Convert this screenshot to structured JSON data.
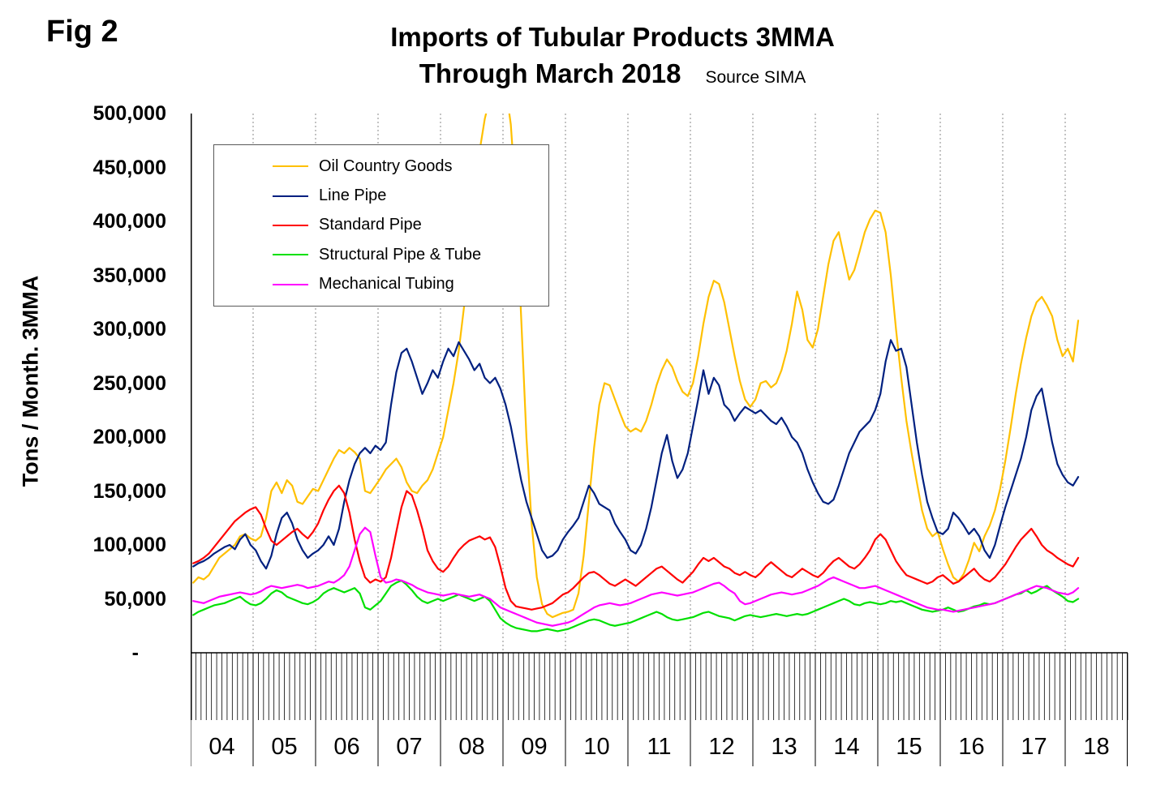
{
  "fig_label": "Fig 2",
  "title": {
    "line1": "Imports of Tubular Products 3MMA",
    "line2": "Through March 2018",
    "source": "Source SIMA"
  },
  "y_axis_title": "Tons / Month. 3MMA",
  "chart_data": {
    "type": "line",
    "title": "Imports of Tubular Products 3MMA Through March 2018",
    "subtitle_source": "Source SIMA",
    "xlabel": "",
    "ylabel": "Tons / Month. 3MMA",
    "ylim": [
      0,
      500000
    ],
    "y_tick_interval": 50000,
    "y_tick_labels": [
      "500,000",
      "450,000",
      "400,000",
      "350,000",
      "300,000",
      "250,000",
      "200,000",
      "150,000",
      "100,000",
      "50,000",
      "-"
    ],
    "x_unit": "month",
    "x_range": [
      "2004-01",
      "2018-03"
    ],
    "x_axis_years_span": 15,
    "x_year_labels": [
      "04",
      "05",
      "06",
      "07",
      "08",
      "09",
      "10",
      "11",
      "12",
      "13",
      "14",
      "15",
      "16",
      "17",
      "18"
    ],
    "grid": "vertical-dotted-yearly",
    "legend_position": "upper-left-inside",
    "series": [
      {
        "name": "Oil Country Goods",
        "color": "#FFC000",
        "values": [
          65000,
          70000,
          68000,
          72000,
          80000,
          88000,
          92000,
          96000,
          100000,
          108000,
          110000,
          106000,
          104000,
          108000,
          125000,
          150000,
          158000,
          148000,
          160000,
          155000,
          140000,
          138000,
          145000,
          152000,
          150000,
          160000,
          170000,
          180000,
          188000,
          185000,
          190000,
          186000,
          180000,
          150000,
          148000,
          155000,
          162000,
          170000,
          175000,
          180000,
          172000,
          158000,
          150000,
          148000,
          155000,
          160000,
          170000,
          185000,
          200000,
          225000,
          250000,
          280000,
          320000,
          370000,
          420000,
          465000,
          495000,
          515000,
          530000,
          535000,
          525000,
          490000,
          420000,
          310000,
          200000,
          120000,
          70000,
          45000,
          36000,
          33000,
          35000,
          37000,
          38000,
          40000,
          55000,
          90000,
          140000,
          190000,
          230000,
          250000,
          248000,
          235000,
          222000,
          210000,
          205000,
          208000,
          205000,
          215000,
          230000,
          248000,
          262000,
          272000,
          265000,
          252000,
          242000,
          238000,
          250000,
          275000,
          305000,
          330000,
          345000,
          342000,
          325000,
          300000,
          275000,
          252000,
          235000,
          228000,
          235000,
          250000,
          252000,
          246000,
          250000,
          262000,
          280000,
          305000,
          335000,
          318000,
          290000,
          283000,
          300000,
          330000,
          360000,
          382000,
          390000,
          368000,
          346000,
          355000,
          372000,
          390000,
          402000,
          410000,
          408000,
          390000,
          350000,
          300000,
          255000,
          215000,
          185000,
          158000,
          132000,
          115000,
          108000,
          112000,
          96000,
          82000,
          70000,
          66000,
          73000,
          86000,
          102000,
          94000,
          108000,
          118000,
          132000,
          152000,
          178000,
          208000,
          240000,
          268000,
          292000,
          312000,
          325000,
          330000,
          322000,
          312000,
          290000,
          275000,
          282000,
          270000,
          308000
        ]
      },
      {
        "name": "Line Pipe",
        "color": "#002080",
        "values": [
          80000,
          83000,
          85000,
          88000,
          92000,
          95000,
          98000,
          100000,
          96000,
          105000,
          110000,
          100000,
          95000,
          85000,
          78000,
          90000,
          110000,
          125000,
          130000,
          120000,
          105000,
          95000,
          88000,
          92000,
          95000,
          100000,
          108000,
          100000,
          115000,
          140000,
          160000,
          175000,
          185000,
          190000,
          185000,
          192000,
          188000,
          195000,
          230000,
          260000,
          278000,
          282000,
          270000,
          255000,
          240000,
          250000,
          262000,
          255000,
          270000,
          282000,
          275000,
          288000,
          280000,
          272000,
          262000,
          268000,
          255000,
          250000,
          255000,
          245000,
          230000,
          210000,
          185000,
          160000,
          140000,
          125000,
          110000,
          95000,
          88000,
          90000,
          95000,
          105000,
          112000,
          118000,
          125000,
          140000,
          155000,
          148000,
          138000,
          135000,
          132000,
          120000,
          112000,
          105000,
          95000,
          92000,
          100000,
          115000,
          135000,
          160000,
          185000,
          202000,
          178000,
          162000,
          170000,
          185000,
          210000,
          235000,
          262000,
          240000,
          255000,
          248000,
          230000,
          225000,
          215000,
          222000,
          228000,
          225000,
          222000,
          225000,
          220000,
          215000,
          212000,
          218000,
          210000,
          200000,
          195000,
          185000,
          170000,
          158000,
          148000,
          140000,
          138000,
          142000,
          155000,
          170000,
          185000,
          195000,
          205000,
          210000,
          215000,
          225000,
          240000,
          270000,
          290000,
          280000,
          282000,
          265000,
          230000,
          195000,
          165000,
          140000,
          125000,
          112000,
          110000,
          115000,
          130000,
          125000,
          118000,
          110000,
          115000,
          108000,
          95000,
          88000,
          100000,
          118000,
          135000,
          150000,
          165000,
          180000,
          200000,
          225000,
          238000,
          245000,
          220000,
          195000,
          175000,
          165000,
          158000,
          155000,
          163000
        ]
      },
      {
        "name": "Standard Pipe",
        "color": "#FF0000",
        "values": [
          83000,
          85000,
          88000,
          92000,
          98000,
          104000,
          110000,
          116000,
          122000,
          126000,
          130000,
          133000,
          135000,
          128000,
          115000,
          104000,
          100000,
          104000,
          108000,
          112000,
          115000,
          110000,
          106000,
          112000,
          120000,
          132000,
          142000,
          150000,
          155000,
          148000,
          130000,
          105000,
          85000,
          70000,
          65000,
          68000,
          66000,
          70000,
          88000,
          112000,
          135000,
          150000,
          146000,
          132000,
          115000,
          95000,
          85000,
          78000,
          75000,
          80000,
          88000,
          95000,
          100000,
          104000,
          106000,
          108000,
          105000,
          107000,
          98000,
          80000,
          60000,
          48000,
          43000,
          42000,
          41000,
          40000,
          41000,
          42000,
          44000,
          46000,
          50000,
          54000,
          56000,
          60000,
          65000,
          70000,
          74000,
          75000,
          72000,
          68000,
          64000,
          62000,
          65000,
          68000,
          65000,
          62000,
          66000,
          70000,
          74000,
          78000,
          80000,
          76000,
          72000,
          68000,
          65000,
          70000,
          75000,
          82000,
          88000,
          85000,
          88000,
          84000,
          80000,
          78000,
          74000,
          72000,
          75000,
          72000,
          70000,
          74000,
          80000,
          84000,
          80000,
          76000,
          72000,
          70000,
          74000,
          78000,
          75000,
          72000,
          70000,
          74000,
          80000,
          85000,
          88000,
          84000,
          80000,
          78000,
          82000,
          88000,
          95000,
          105000,
          110000,
          105000,
          95000,
          85000,
          78000,
          72000,
          70000,
          68000,
          66000,
          64000,
          66000,
          70000,
          72000,
          68000,
          64000,
          66000,
          70000,
          74000,
          78000,
          72000,
          68000,
          66000,
          70000,
          76000,
          82000,
          90000,
          98000,
          105000,
          110000,
          115000,
          108000,
          100000,
          95000,
          92000,
          88000,
          85000,
          82000,
          80000,
          88000
        ]
      },
      {
        "name": "Structural Pipe & Tube",
        "color": "#00E000",
        "values": [
          35000,
          38000,
          40000,
          42000,
          44000,
          45000,
          46000,
          48000,
          50000,
          52000,
          48000,
          45000,
          44000,
          46000,
          50000,
          55000,
          58000,
          56000,
          52000,
          50000,
          48000,
          46000,
          45000,
          47000,
          50000,
          55000,
          58000,
          60000,
          58000,
          56000,
          58000,
          60000,
          55000,
          42000,
          40000,
          44000,
          48000,
          55000,
          62000,
          65000,
          67000,
          63000,
          58000,
          52000,
          48000,
          46000,
          48000,
          50000,
          48000,
          50000,
          52000,
          54000,
          52000,
          50000,
          48000,
          50000,
          52000,
          48000,
          40000,
          32000,
          28000,
          25000,
          23000,
          22000,
          21000,
          20000,
          20000,
          21000,
          22000,
          21000,
          20000,
          21000,
          22000,
          24000,
          26000,
          28000,
          30000,
          31000,
          30000,
          28000,
          26000,
          25000,
          26000,
          27000,
          28000,
          30000,
          32000,
          34000,
          36000,
          38000,
          36000,
          33000,
          31000,
          30000,
          31000,
          32000,
          33000,
          35000,
          37000,
          38000,
          36000,
          34000,
          33000,
          32000,
          30000,
          32000,
          34000,
          35000,
          34000,
          33000,
          34000,
          35000,
          36000,
          35000,
          34000,
          35000,
          36000,
          35000,
          36000,
          38000,
          40000,
          42000,
          44000,
          46000,
          48000,
          50000,
          48000,
          45000,
          44000,
          46000,
          47000,
          46000,
          45000,
          46000,
          48000,
          47000,
          48000,
          46000,
          44000,
          42000,
          40000,
          39000,
          38000,
          39000,
          40000,
          42000,
          40000,
          38000,
          39000,
          41000,
          43000,
          44000,
          46000,
          45000,
          46000,
          48000,
          50000,
          52000,
          54000,
          55000,
          58000,
          55000,
          57000,
          60000,
          62000,
          58000,
          55000,
          52000,
          48000,
          47000,
          50000
        ]
      },
      {
        "name": "Mechanical Tubing",
        "color": "#FF00FF",
        "values": [
          48000,
          47000,
          46000,
          48000,
          50000,
          52000,
          53000,
          54000,
          55000,
          56000,
          55000,
          54000,
          55000,
          57000,
          60000,
          62000,
          61000,
          60000,
          61000,
          62000,
          63000,
          62000,
          60000,
          61000,
          62000,
          64000,
          66000,
          65000,
          68000,
          72000,
          80000,
          95000,
          110000,
          116000,
          112000,
          90000,
          70000,
          65000,
          66000,
          68000,
          67000,
          65000,
          63000,
          60000,
          58000,
          56000,
          55000,
          54000,
          53000,
          54000,
          55000,
          54000,
          53000,
          52000,
          53000,
          54000,
          52000,
          50000,
          46000,
          42000,
          40000,
          38000,
          36000,
          34000,
          32000,
          30000,
          28000,
          27000,
          26000,
          25000,
          26000,
          27000,
          28000,
          30000,
          33000,
          36000,
          39000,
          42000,
          44000,
          45000,
          46000,
          45000,
          44000,
          45000,
          46000,
          48000,
          50000,
          52000,
          54000,
          55000,
          56000,
          55000,
          54000,
          53000,
          54000,
          55000,
          56000,
          58000,
          60000,
          62000,
          64000,
          65000,
          62000,
          58000,
          55000,
          48000,
          45000,
          46000,
          48000,
          50000,
          52000,
          54000,
          55000,
          56000,
          55000,
          54000,
          55000,
          56000,
          58000,
          60000,
          62000,
          65000,
          68000,
          70000,
          68000,
          66000,
          64000,
          62000,
          60000,
          60000,
          61000,
          62000,
          60000,
          58000,
          56000,
          54000,
          52000,
          50000,
          48000,
          46000,
          44000,
          42000,
          41000,
          40000,
          40000,
          39000,
          38000,
          39000,
          40000,
          41000,
          42000,
          43000,
          44000,
          45000,
          46000,
          48000,
          50000,
          52000,
          54000,
          56000,
          58000,
          60000,
          62000,
          61000,
          60000,
          58000,
          56000,
          55000,
          54000,
          56000,
          60000
        ]
      }
    ]
  }
}
